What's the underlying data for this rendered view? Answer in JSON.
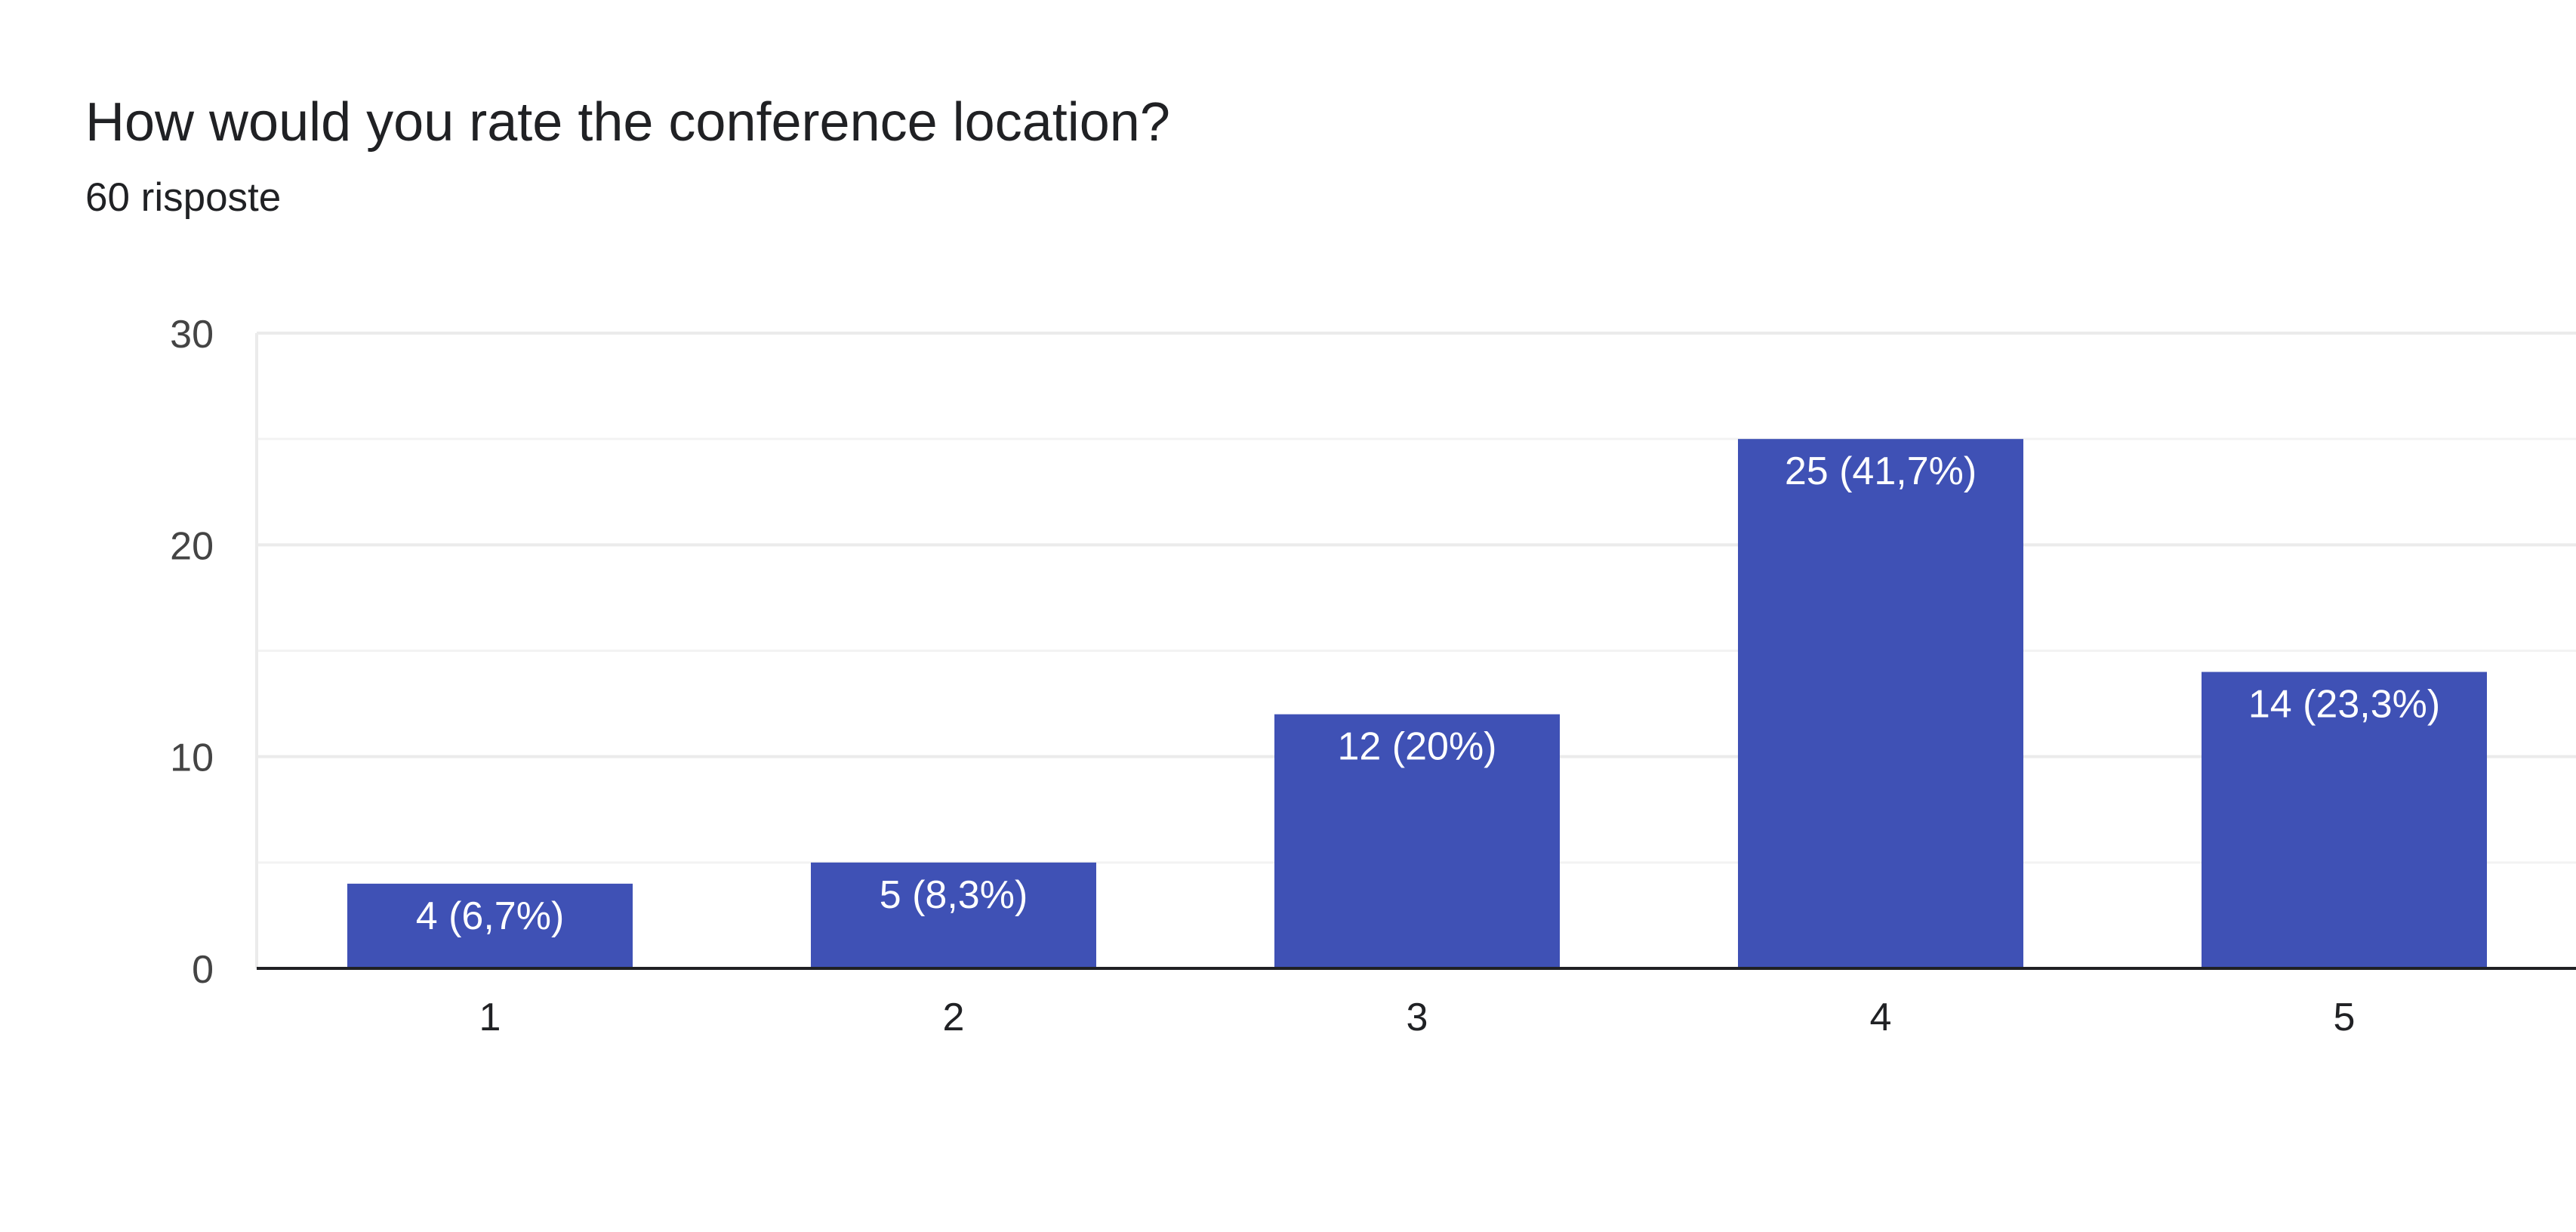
{
  "chart_data": {
    "type": "bar",
    "title": "How would you rate the conference location?",
    "subtitle": "60 risposte",
    "categories": [
      "1",
      "2",
      "3",
      "4",
      "5"
    ],
    "values": [
      4,
      5,
      12,
      25,
      14
    ],
    "data_labels": [
      "4 (6,7%)",
      "5 (8,3%)",
      "12 (20%)",
      "25 (41,7%)",
      "14 (23,3%)"
    ],
    "y_ticks": [
      "0",
      "10",
      "20",
      "30"
    ],
    "ylim": [
      0,
      30
    ],
    "xlabel": "",
    "ylabel": "",
    "grid": true,
    "bar_color": "#3f51b5",
    "label_color": "#ffffff",
    "axis_color": "#202124",
    "grid_color": "#ebebeb",
    "tick_color": "#444444"
  }
}
